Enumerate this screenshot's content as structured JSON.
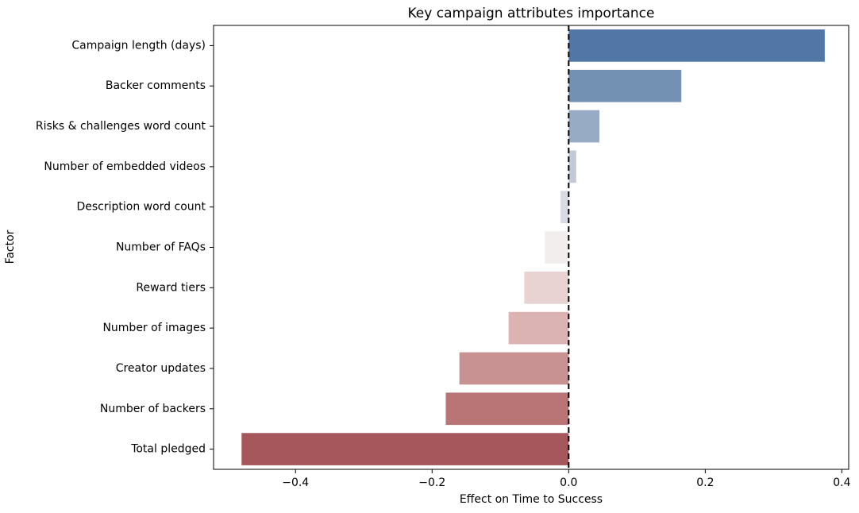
{
  "chart_data": {
    "type": "bar",
    "orientation": "horizontal",
    "title": "Key campaign attributes importance",
    "xlabel": "Effect on Time to Success",
    "ylabel": "Factor",
    "xlim": [
      -0.52,
      0.41
    ],
    "xticks": [
      -0.4,
      -0.2,
      0.0,
      0.2,
      0.4
    ],
    "xtick_labels": [
      "−0.4",
      "−0.2",
      "0.0",
      "0.2",
      "0.4"
    ],
    "grid": false,
    "reference_line": {
      "x": 0.0,
      "style": "dashed",
      "color": "#000000"
    },
    "categories": [
      "Campaign length (days)",
      "Backer comments",
      "Risks & challenges word count",
      "Number of embedded videos",
      "Description word count",
      "Number of FAQs",
      "Reward tiers",
      "Number of images",
      "Creator updates",
      "Number of backers",
      "Total pledged"
    ],
    "values": [
      0.375,
      0.165,
      0.045,
      0.011,
      -0.012,
      -0.035,
      -0.065,
      -0.088,
      -0.16,
      -0.18,
      -0.479
    ],
    "colors": [
      "#5277a6",
      "#7392b3",
      "#98abc4",
      "#c2cad6",
      "#d8dbe2",
      "#f3eeee",
      "#e9d2d2",
      "#dcb3b3",
      "#c89292",
      "#b97575",
      "#a6575b"
    ]
  }
}
